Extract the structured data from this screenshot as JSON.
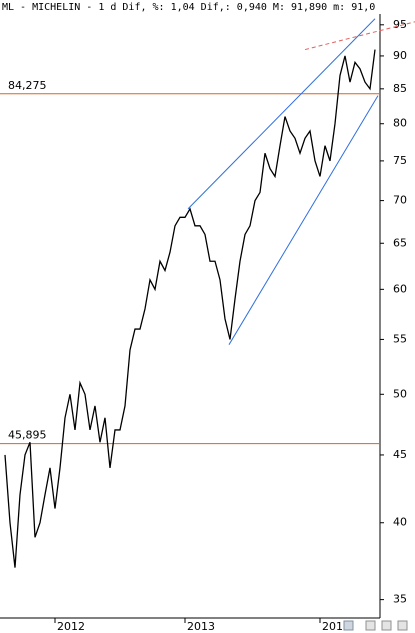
{
  "chart_data": {
    "type": "line",
    "title": "ML - MICHELIN -  1 d Dif, %: 1,04 Dif,: 0,940 M: 91,890 m: 91,0",
    "categories": [
      null,
      null,
      null,
      null,
      null,
      null,
      null,
      null,
      null,
      null,
      "2012",
      null,
      null,
      null,
      null,
      null,
      null,
      null,
      null,
      null,
      null,
      null,
      null,
      null,
      null,
      null,
      null,
      null,
      null,
      null,
      null,
      null,
      null,
      null,
      null,
      null,
      "2013",
      null,
      null,
      null,
      null,
      null,
      null,
      null,
      null,
      null,
      null,
      null,
      null,
      null,
      null,
      null,
      null,
      null,
      null,
      null,
      null,
      null,
      null,
      null,
      null,
      null,
      null,
      "201",
      null,
      null,
      null,
      null,
      null,
      null,
      null,
      null,
      null,
      null,
      null
    ],
    "values": [
      45,
      40,
      37,
      42,
      45,
      46,
      39,
      40,
      42,
      44,
      41,
      44,
      48,
      50,
      47,
      51,
      50,
      47,
      49,
      46,
      48,
      44,
      47,
      47,
      49,
      54,
      56,
      56,
      58,
      61,
      60,
      63,
      62,
      64,
      67,
      68,
      68,
      69,
      67,
      67,
      66,
      63,
      63,
      61,
      57,
      55,
      59,
      63,
      66,
      67,
      70,
      71,
      76,
      74,
      73,
      77,
      81,
      79,
      78,
      76,
      78,
      79,
      75,
      73,
      77,
      75,
      80,
      87,
      90,
      86,
      89,
      88,
      86,
      85,
      91
    ],
    "color": "#000000",
    "log_scale": true,
    "ylim": [
      33.9,
      96.8
    ],
    "yticks": [
      35,
      40,
      45,
      50,
      55,
      60,
      65,
      70,
      75,
      80,
      85,
      90,
      95
    ],
    "hlines": [
      {
        "value": 84.275,
        "label": "84,275",
        "color": "#e0601c"
      },
      {
        "value": 45.895,
        "label": "45,895",
        "color": "#e0601c"
      }
    ],
    "trendlines": [
      {
        "x": [
          36.6,
          74
        ],
        "y": [
          69,
          96
        ],
        "color": "#3070e0",
        "dashed": false
      },
      {
        "x": [
          44.8,
          74.6
        ],
        "y": [
          54.5,
          84
        ],
        "color": "#3070e0",
        "dashed": false
      },
      {
        "x": [
          60,
          82
        ],
        "y": [
          91,
          95.5
        ],
        "color": "#e06060",
        "dashed": true
      }
    ]
  }
}
